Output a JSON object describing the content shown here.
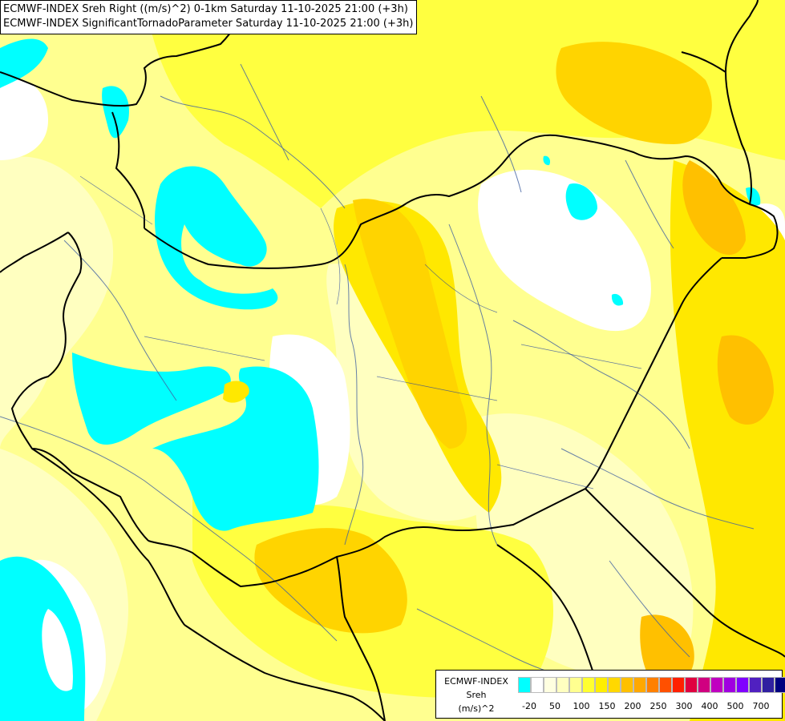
{
  "header": {
    "line1": "ECMWF-INDEX Sreh Right ((m/s)^2) 0-1km Saturday 11-10-2025 21:00 (+3h)",
    "line2": "ECMWF-INDEX SignificantTornadoParameter Saturday 11-10-2025 21:00 (+3h)"
  },
  "legend": {
    "source": "ECMWF-INDEX",
    "variable": "Sreh",
    "unit": "(m/s)^2",
    "colors": [
      "#00ffff",
      "#ffffff",
      "#ffffe0",
      "#ffffc0",
      "#ffff90",
      "#ffff30",
      "#ffee00",
      "#ffd800",
      "#ffc000",
      "#ffa800",
      "#ff8000",
      "#ff5000",
      "#ff2000",
      "#e00040",
      "#d00080",
      "#c000c0",
      "#a000e0",
      "#8000ff",
      "#5020c0",
      "#3020a0",
      "#000080"
    ],
    "ticks": [
      "-20",
      "50",
      "100",
      "150",
      "200",
      "250",
      "300",
      "400",
      "500",
      "700"
    ]
  },
  "palette": {
    "white": "#ffffff",
    "pale": "#ffffc0",
    "light_yellow": "#ffff90",
    "yellow": "#ffff40",
    "gold": "#ffe800",
    "amber": "#ffd400",
    "orange": "#ffc000",
    "cyan": "#00ffff",
    "border": "#000000",
    "river": "#4060a0"
  }
}
